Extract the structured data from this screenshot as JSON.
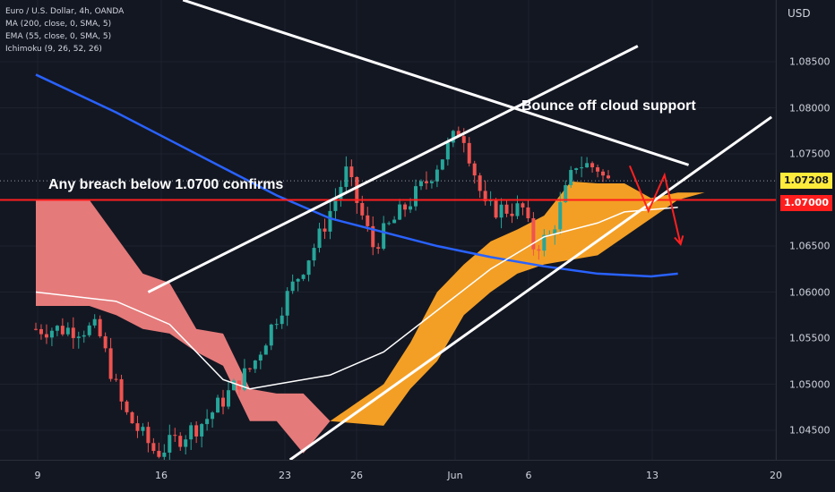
{
  "legend": {
    "title": "Euro / U.S. Dollar, 4h, OANDA",
    "ma": "MA (200, close, 0, SMA, 5)",
    "ema": "EMA (55, close, 0, SMA, 5)",
    "ichimoku": "Ichimoku (9, 26, 52, 26)"
  },
  "currency": "USD",
  "price_tags": {
    "current": "1.07208",
    "level": "1.07000"
  },
  "annotations": {
    "bounce": "Bounce off cloud support",
    "breach": "Any breach below 1.0700 confirms"
  },
  "colors": {
    "background": "#131722",
    "bull": "#26a69a",
    "bear": "#ef5350",
    "ma200": "#2962ff",
    "ema55": "#ffffff",
    "cloud_bull": "#ffa726",
    "cloud_bear": "#f08080",
    "level_line": "#ff1e1e",
    "current_tag": "#ffeb3b"
  },
  "chart_data": {
    "type": "line",
    "instrument": "Euro / U.S. Dollar, 4h, OANDA",
    "ylabel": "USD",
    "ylim": [
      1.0418,
      1.0917
    ],
    "y_ticks": [
      "1.04500",
      "1.05000",
      "1.05500",
      "1.06000",
      "1.06500",
      "1.07000",
      "1.07500",
      "1.08000",
      "1.08500"
    ],
    "x_ticks": [
      "9",
      "16",
      "23",
      "26",
      "Jun",
      "6",
      "13",
      "20"
    ],
    "horizontal_level": 1.07,
    "last_price": 1.07208,
    "series": [
      {
        "name": "MA (200, close, 0, SMA, 5)",
        "points": [
          [
            0,
            1.0836
          ],
          [
            3,
            1.0795
          ],
          [
            5,
            1.0765
          ],
          [
            7,
            1.0735
          ],
          [
            9,
            1.0705
          ],
          [
            11,
            1.068
          ],
          [
            13,
            1.0665
          ],
          [
            15,
            1.065
          ],
          [
            17,
            1.0638
          ],
          [
            19,
            1.0628
          ],
          [
            21,
            1.062
          ],
          [
            23,
            1.0617
          ],
          [
            24,
            1.062
          ]
        ]
      },
      {
        "name": "EMA (55, close, 0, SMA, 5)",
        "points": [
          [
            0,
            1.06
          ],
          [
            3,
            1.059
          ],
          [
            5,
            1.0565
          ],
          [
            7,
            1.0505
          ],
          [
            8,
            1.0495
          ],
          [
            9,
            1.05
          ],
          [
            11,
            1.051
          ],
          [
            13,
            1.0535
          ],
          [
            15,
            1.058
          ],
          [
            17,
            1.0625
          ],
          [
            19,
            1.066
          ],
          [
            21,
            1.0675
          ],
          [
            22,
            1.0687
          ],
          [
            24,
            1.0692
          ]
        ]
      }
    ],
    "cloud": [
      {
        "name": "Ichimoku cloud (bearish)",
        "color": "#f08080",
        "upper": [
          [
            0,
            1.07
          ],
          [
            2,
            1.07
          ],
          [
            3,
            1.066
          ],
          [
            4,
            1.062
          ],
          [
            5,
            1.061
          ],
          [
            6,
            1.056
          ],
          [
            7,
            1.0555
          ],
          [
            8,
            1.0495
          ],
          [
            9,
            1.049
          ],
          [
            10,
            1.049
          ],
          [
            11,
            1.046
          ]
        ],
        "lower": [
          [
            0,
            1.0585
          ],
          [
            2,
            1.0585
          ],
          [
            3,
            1.0575
          ],
          [
            4,
            1.056
          ],
          [
            5,
            1.0555
          ],
          [
            6,
            1.0535
          ],
          [
            7,
            1.052
          ],
          [
            8,
            1.046
          ],
          [
            9,
            1.046
          ],
          [
            10,
            1.0425
          ],
          [
            11,
            1.046
          ]
        ]
      },
      {
        "name": "Ichimoku cloud (bullish)",
        "color": "#ffa726",
        "upper": [
          [
            11,
            1.046
          ],
          [
            13,
            1.05
          ],
          [
            14,
            1.0545
          ],
          [
            15,
            1.06
          ],
          [
            16,
            1.063
          ],
          [
            17,
            1.0655
          ],
          [
            18,
            1.0668
          ],
          [
            19,
            1.0683
          ],
          [
            20,
            1.072
          ],
          [
            21,
            1.0718
          ],
          [
            22,
            1.0718
          ],
          [
            23,
            1.0702
          ],
          [
            24,
            1.0708
          ],
          [
            25,
            1.0708
          ]
        ],
        "lower": [
          [
            11,
            1.046
          ],
          [
            13,
            1.0455
          ],
          [
            14,
            1.0495
          ],
          [
            15,
            1.0525
          ],
          [
            16,
            1.0575
          ],
          [
            17,
            1.06
          ],
          [
            18,
            1.062
          ],
          [
            19,
            1.063
          ],
          [
            20,
            1.0635
          ],
          [
            21,
            1.064
          ],
          [
            22,
            1.066
          ],
          [
            23,
            1.068
          ],
          [
            24,
            1.07
          ],
          [
            25,
            1.0708
          ]
        ]
      }
    ],
    "trendlines": [
      {
        "name": "descending resistance",
        "points": [
          [
            5.5,
            1.0917
          ],
          [
            24.4,
            1.0738
          ]
        ]
      },
      {
        "name": "channel top",
        "points": [
          [
            4.2,
            1.06
          ],
          [
            22.5,
            1.0867
          ]
        ]
      },
      {
        "name": "channel bottom",
        "points": [
          [
            9.5,
            1.0418
          ],
          [
            27.5,
            1.079
          ]
        ]
      }
    ],
    "projection": [
      [
        22.2,
        1.0737
      ],
      [
        22.9,
        1.0688
      ],
      [
        23.5,
        1.0727
      ],
      [
        24.1,
        1.0652
      ]
    ]
  }
}
